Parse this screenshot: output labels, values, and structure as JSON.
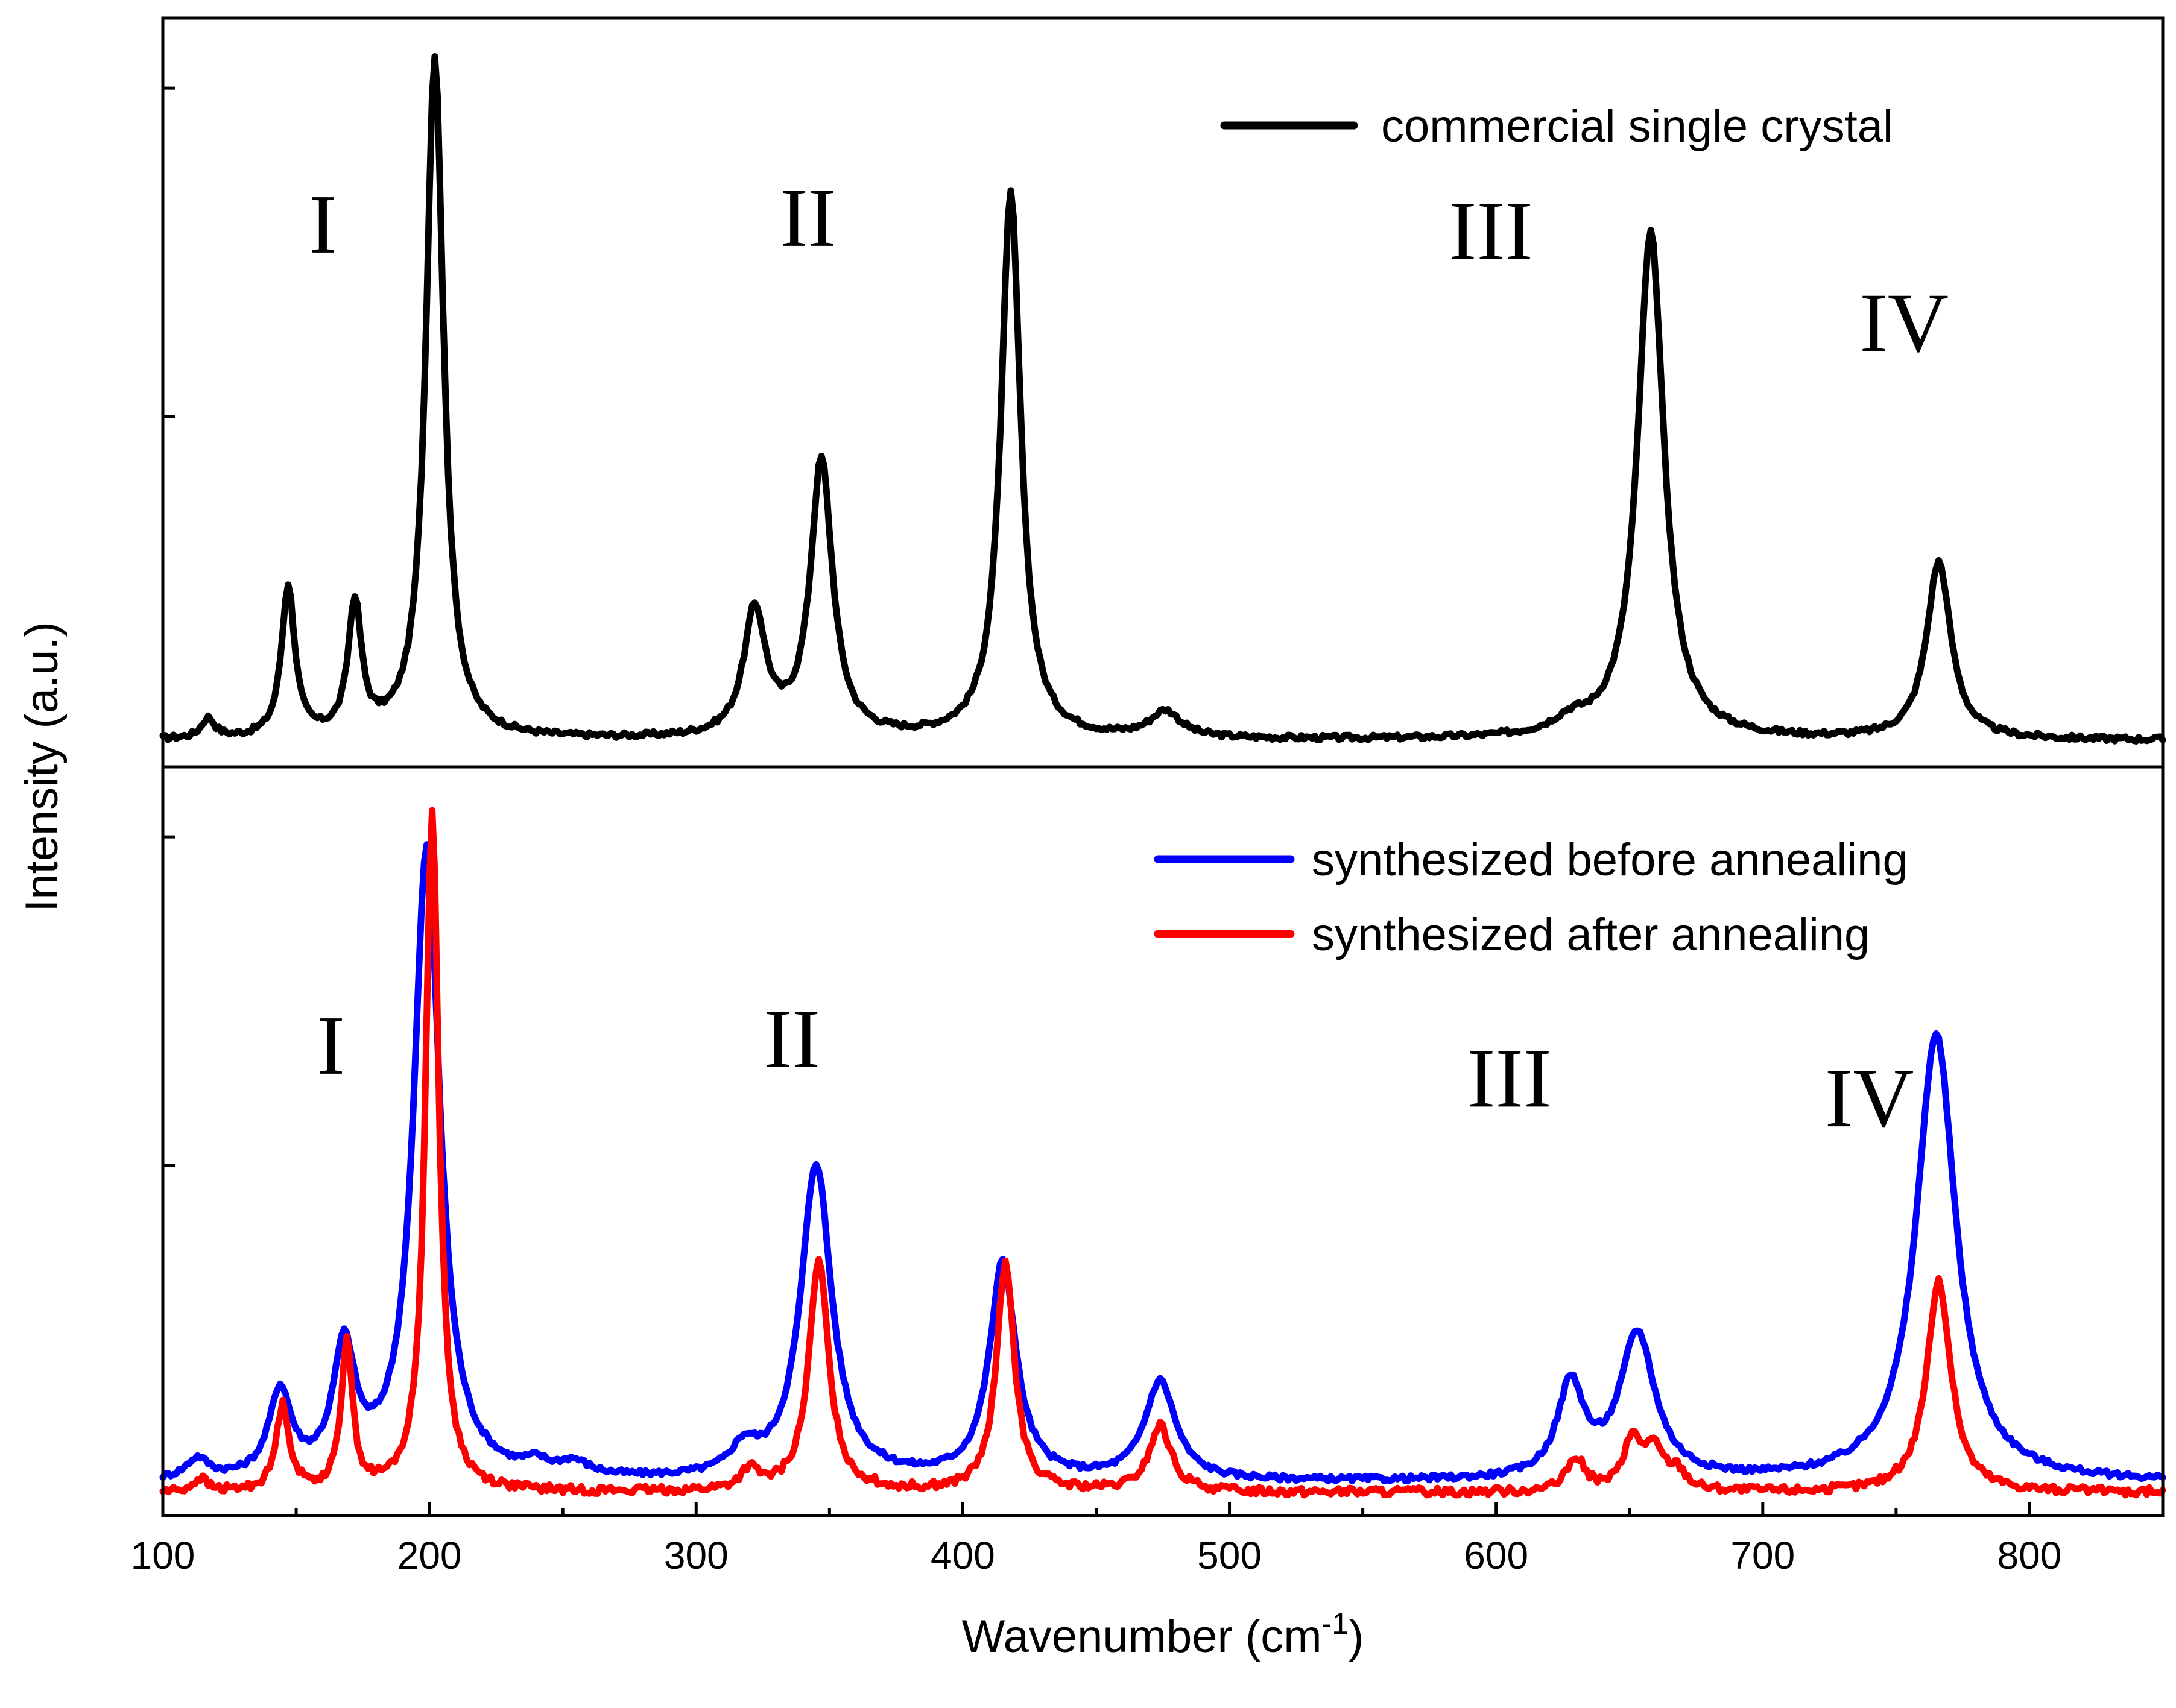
{
  "chart_data": {
    "type": "line",
    "xlabel": "Wavenumber (cm",
    "xlabel_sup": "-1",
    "xlabel_close": ")",
    "ylabel": "Intensity (a.u.)",
    "xlim": [
      100,
      850
    ],
    "xticks": [
      100,
      200,
      300,
      400,
      500,
      600,
      700,
      800
    ],
    "panels": [
      {
        "id": "top",
        "ylim": [
          0,
          1.1
        ],
        "region_labels": [
          {
            "text": "I",
            "x": 160,
            "y": 0.75
          },
          {
            "text": "II",
            "x": 342,
            "y": 0.76
          },
          {
            "text": "III",
            "x": 598,
            "y": 0.74
          },
          {
            "text": "IV",
            "x": 753,
            "y": 0.6
          }
        ],
        "series": [
          {
            "name": "commercial single crystal",
            "color": "#000000",
            "peaks": [
              {
                "center": 117,
                "height": 0.03,
                "width": 3
              },
              {
                "center": 147,
                "height": 0.23,
                "width": 3
              },
              {
                "center": 172,
                "height": 0.2,
                "width": 3
              },
              {
                "center": 202,
                "height": 1.04,
                "width": 4
              },
              {
                "center": 322,
                "height": 0.19,
                "width": 5
              },
              {
                "center": 347,
                "height": 0.42,
                "width": 5
              },
              {
                "center": 418,
                "height": 0.83,
                "width": 4.5
              },
              {
                "center": 476,
                "height": 0.04,
                "width": 7
              },
              {
                "center": 628,
                "height": 0.02,
                "width": 8
              },
              {
                "center": 658,
                "height": 0.77,
                "width": 6
              },
              {
                "center": 766,
                "height": 0.27,
                "width": 5.5
              }
            ],
            "baseline": 0.008,
            "noise": 0.004
          }
        ]
      },
      {
        "id": "bottom",
        "ylim": [
          0,
          1.1
        ],
        "region_labels": [
          {
            "text": "I",
            "x": 163,
            "y": 0.64
          },
          {
            "text": "II",
            "x": 336,
            "y": 0.65
          },
          {
            "text": "III",
            "x": 605,
            "y": 0.59
          },
          {
            "text": "IV",
            "x": 740,
            "y": 0.56
          }
        ],
        "series": [
          {
            "name": "synthesized before annealing",
            "color": "#0000ff",
            "peaks": [
              {
                "center": 113,
                "height": 0.03,
                "width": 5
              },
              {
                "center": 144,
                "height": 0.13,
                "width": 5
              },
              {
                "center": 168,
                "height": 0.19,
                "width": 5
              },
              {
                "center": 199,
                "height": 0.96,
                "width": 6
              },
              {
                "center": 240,
                "height": 0.015,
                "width": 5
              },
              {
                "center": 254,
                "height": 0.02,
                "width": 7
              },
              {
                "center": 318,
                "height": 0.04,
                "width": 6
              },
              {
                "center": 345,
                "height": 0.48,
                "width": 7
              },
              {
                "center": 415,
                "height": 0.33,
                "width": 6
              },
              {
                "center": 474,
                "height": 0.15,
                "width": 7
              },
              {
                "center": 628,
                "height": 0.14,
                "width": 6
              },
              {
                "center": 653,
                "height": 0.22,
                "width": 8
              },
              {
                "center": 765,
                "height": 0.68,
                "width": 9
              }
            ],
            "baseline": 0.018,
            "noise": 0.004
          },
          {
            "name": "synthesized after annealing",
            "color": "#ff0000",
            "peaks": [
              {
                "center": 114,
                "height": 0.02,
                "width": 3
              },
              {
                "center": 145,
                "height": 0.13,
                "width": 3
              },
              {
                "center": 169,
                "height": 0.23,
                "width": 2.5
              },
              {
                "center": 201,
                "height": 1.04,
                "width": 3
              },
              {
                "center": 320,
                "height": 0.03,
                "width": 4
              },
              {
                "center": 346,
                "height": 0.35,
                "width": 4.5
              },
              {
                "center": 416,
                "height": 0.35,
                "width": 4
              },
              {
                "center": 474,
                "height": 0.1,
                "width": 5
              },
              {
                "center": 630,
                "height": 0.05,
                "width": 4
              },
              {
                "center": 651,
                "height": 0.07,
                "width": 4
              },
              {
                "center": 659,
                "height": 0.06,
                "width": 5
              },
              {
                "center": 668,
                "height": 0.025,
                "width": 4
              },
              {
                "center": 766,
                "height": 0.32,
                "width": 5.5
              }
            ],
            "baseline": 0.003,
            "noise": 0.006
          }
        ]
      }
    ]
  }
}
